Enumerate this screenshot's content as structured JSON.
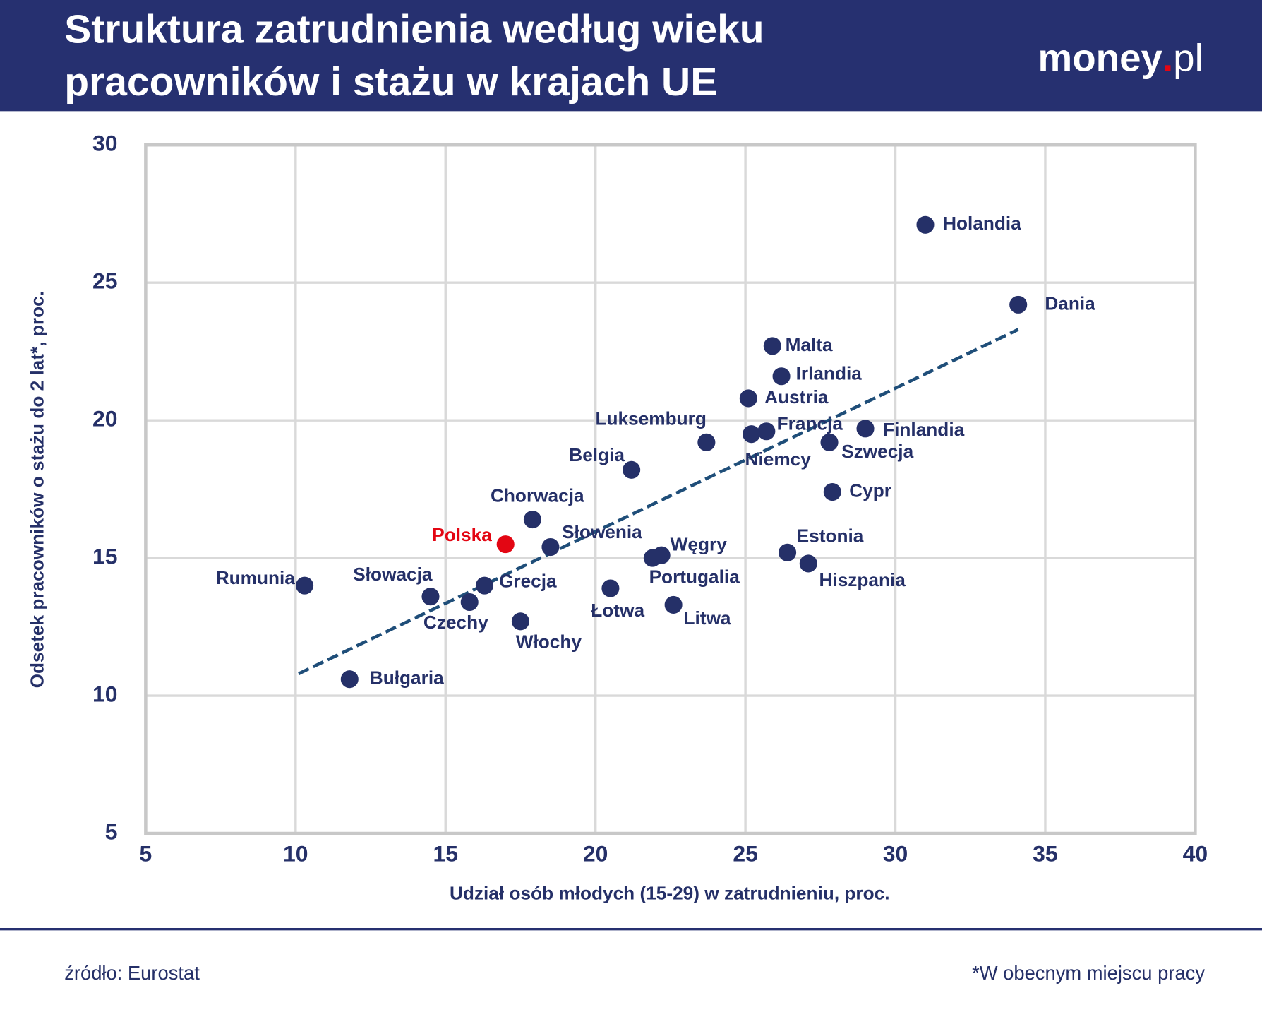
{
  "chart_data": {
    "type": "scatter",
    "title": [
      "Struktura zatrudnienia według wieku",
      "pracowników i stażu w krajach UE"
    ],
    "logo": {
      "name": "money",
      "dot": ".",
      "suffix": "pl"
    },
    "x_label": "Udział osób młodych (15-29) w zatrudnieniu, proc.",
    "y_label": "Odsetek pracowników o stażu do 2 lat*, proc.",
    "source": "źródło: Eurostat",
    "footnote": "*W obecnym miejscu pracy",
    "xlim": [
      5,
      40
    ],
    "xticks": [
      5,
      10,
      15,
      20,
      25,
      30,
      35,
      40
    ],
    "ylim": [
      5,
      30
    ],
    "yticks": [
      5,
      10,
      15,
      20,
      25,
      30
    ],
    "grid": true,
    "trendline": {
      "x": [
        10.1,
        34.1
      ],
      "y": [
        10.8,
        23.3
      ],
      "color": "#1f4e79"
    },
    "points": [
      {
        "label": "Holandia",
        "x": 31.0,
        "y": 27.1,
        "color": "#253068"
      },
      {
        "label": "Dania",
        "x": 34.1,
        "y": 24.2,
        "color": "#253068"
      },
      {
        "label": "Malta",
        "x": 25.9,
        "y": 22.7,
        "color": "#253068"
      },
      {
        "label": "Irlandia",
        "x": 26.2,
        "y": 21.6,
        "color": "#253068"
      },
      {
        "label": "Austria",
        "x": 25.1,
        "y": 20.8,
        "color": "#253068"
      },
      {
        "label": "Francja",
        "x": 25.7,
        "y": 19.6,
        "color": "#253068"
      },
      {
        "label": "Niemcy",
        "x": 25.2,
        "y": 19.5,
        "color": "#253068"
      },
      {
        "label": "Luksemburg",
        "x": 23.7,
        "y": 19.2,
        "color": "#253068"
      },
      {
        "label": "Finlandia",
        "x": 29.0,
        "y": 19.7,
        "color": "#253068"
      },
      {
        "label": "Szwecja",
        "x": 27.8,
        "y": 19.2,
        "color": "#253068"
      },
      {
        "label": "Belgia",
        "x": 21.2,
        "y": 18.2,
        "color": "#253068"
      },
      {
        "label": "Cypr",
        "x": 27.9,
        "y": 17.4,
        "color": "#253068"
      },
      {
        "label": "Chorwacja",
        "x": 17.9,
        "y": 16.4,
        "color": "#253068"
      },
      {
        "label": "Polska",
        "x": 17.0,
        "y": 15.5,
        "color": "#e30613"
      },
      {
        "label": "Słowenia",
        "x": 18.5,
        "y": 15.4,
        "color": "#253068"
      },
      {
        "label": "Węgry",
        "x": 22.2,
        "y": 15.1,
        "color": "#253068"
      },
      {
        "label": "Portugalia",
        "x": 21.9,
        "y": 15.0,
        "color": "#253068"
      },
      {
        "label": "Estonia",
        "x": 26.4,
        "y": 15.2,
        "color": "#253068"
      },
      {
        "label": "Hiszpania",
        "x": 27.1,
        "y": 14.8,
        "color": "#253068"
      },
      {
        "label": "Rumunia",
        "x": 10.3,
        "y": 14.0,
        "color": "#253068"
      },
      {
        "label": "Słowacja",
        "x": 14.5,
        "y": 13.6,
        "color": "#253068"
      },
      {
        "label": "Grecja",
        "x": 16.3,
        "y": 14.0,
        "color": "#253068"
      },
      {
        "label": "Czechy",
        "x": 15.8,
        "y": 13.4,
        "color": "#253068"
      },
      {
        "label": "Łotwa",
        "x": 20.5,
        "y": 13.9,
        "color": "#253068"
      },
      {
        "label": "Litwa",
        "x": 22.6,
        "y": 13.3,
        "color": "#253068"
      },
      {
        "label": "Włochy",
        "x": 17.5,
        "y": 12.7,
        "color": "#253068"
      },
      {
        "label": "Bułgaria",
        "x": 11.8,
        "y": 10.6,
        "color": "#253068"
      }
    ]
  }
}
